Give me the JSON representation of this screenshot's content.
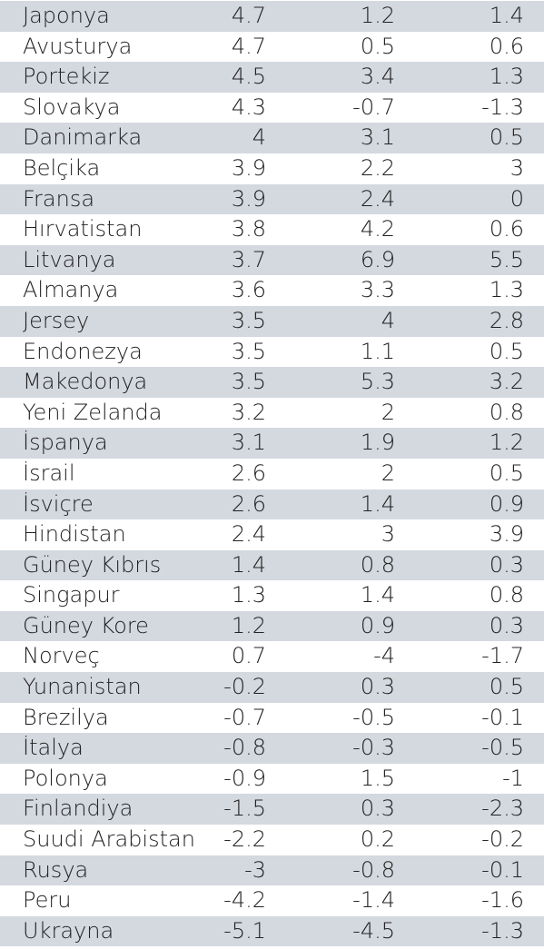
{
  "table": {
    "rows": [
      {
        "country": "Japonya",
        "v1": "4.7",
        "v2": "1.2",
        "v3": "1.4"
      },
      {
        "country": "Avusturya",
        "v1": "4.7",
        "v2": "0.5",
        "v3": "0.6"
      },
      {
        "country": "Portekiz",
        "v1": "4.5",
        "v2": "3.4",
        "v3": "1.3"
      },
      {
        "country": "Slovakya",
        "v1": "4.3",
        "v2": "-0.7",
        "v3": "-1.3"
      },
      {
        "country": "Danimarka",
        "v1": "4",
        "v2": "3.1",
        "v3": "0.5"
      },
      {
        "country": "Belçika",
        "v1": "3.9",
        "v2": "2.2",
        "v3": "3"
      },
      {
        "country": "Fransa",
        "v1": "3.9",
        "v2": "2.4",
        "v3": "0"
      },
      {
        "country": "Hırvatistan",
        "v1": "3.8",
        "v2": "4.2",
        "v3": "0.6"
      },
      {
        "country": "Litvanya",
        "v1": "3.7",
        "v2": "6.9",
        "v3": "5.5"
      },
      {
        "country": "Almanya",
        "v1": "3.6",
        "v2": "3.3",
        "v3": "1.3"
      },
      {
        "country": "Jersey",
        "v1": "3.5",
        "v2": "4",
        "v3": "2.8"
      },
      {
        "country": "Endonezya",
        "v1": "3.5",
        "v2": "1.1",
        "v3": "0.5"
      },
      {
        "country": "Makedonya",
        "v1": "3.5",
        "v2": "5.3",
        "v3": "3.2"
      },
      {
        "country": "Yeni Zelanda",
        "v1": "3.2",
        "v2": "2",
        "v3": "0.8"
      },
      {
        "country": "İspanya",
        "v1": "3.1",
        "v2": "1.9",
        "v3": "1.2"
      },
      {
        "country": "İsrail",
        "v1": "2.6",
        "v2": "2",
        "v3": "0.5"
      },
      {
        "country": "İsviçre",
        "v1": "2.6",
        "v2": "1.4",
        "v3": "0.9"
      },
      {
        "country": "Hindistan",
        "v1": "2.4",
        "v2": "3",
        "v3": "3.9"
      },
      {
        "country": "Güney Kıbrıs",
        "v1": "1.4",
        "v2": "0.8",
        "v3": "0.3"
      },
      {
        "country": "Singapur",
        "v1": "1.3",
        "v2": "1.4",
        "v3": "0.8"
      },
      {
        "country": "Güney Kore",
        "v1": "1.2",
        "v2": "0.9",
        "v3": "0.3"
      },
      {
        "country": "Norveç",
        "v1": "0.7",
        "v2": "-4",
        "v3": "-1.7"
      },
      {
        "country": "Yunanistan",
        "v1": "-0.2",
        "v2": "0.3",
        "v3": "0.5"
      },
      {
        "country": "Brezilya",
        "v1": "-0.7",
        "v2": "-0.5",
        "v3": "-0.1"
      },
      {
        "country": "İtalya",
        "v1": "-0.8",
        "v2": "-0.3",
        "v3": "-0.5"
      },
      {
        "country": "Polonya",
        "v1": "-0.9",
        "v2": "1.5",
        "v3": "-1"
      },
      {
        "country": "Finlandiya",
        "v1": "-1.5",
        "v2": "0.3",
        "v3": "-2.3"
      },
      {
        "country": "Suudi Arabistan",
        "v1": "-2.2",
        "v2": "0.2",
        "v3": "-0.2"
      },
      {
        "country": "Rusya",
        "v1": "-3",
        "v2": "-0.8",
        "v3": "-0.1"
      },
      {
        "country": "Peru",
        "v1": "-4.2",
        "v2": "-1.4",
        "v3": "-1.6"
      },
      {
        "country": "Ukrayna",
        "v1": "-5.1",
        "v2": "-4.5",
        "v3": "-1.3"
      }
    ]
  },
  "colors": {
    "shaded_row": "#d4d8df",
    "text": "#222222"
  }
}
